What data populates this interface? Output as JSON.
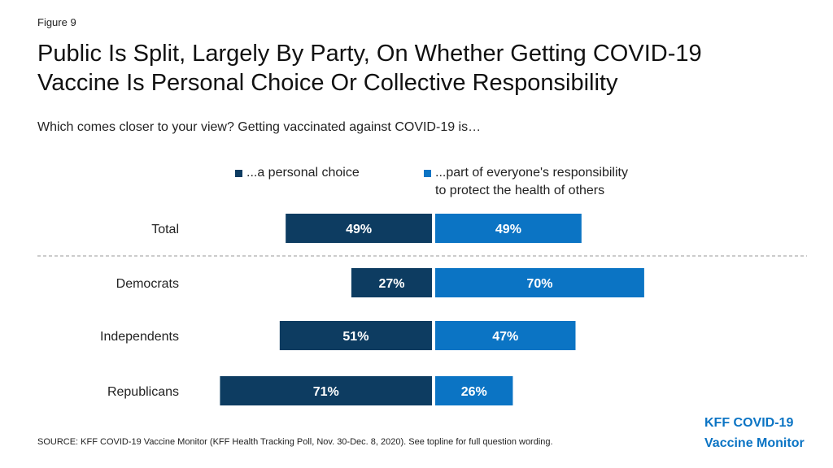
{
  "figure_label": "Figure 9",
  "title_line1": "Public Is Split, Largely By Party, On Whether Getting COVID-19",
  "title_line2": "Vaccine Is Personal Choice Or Collective Responsibility",
  "subtitle": "Which comes closer to your view? Getting vaccinated against COVID-19 is…",
  "colors": {
    "personal_choice": "#0d3c61",
    "responsibility": "#0b74c4",
    "brand": "#0b74c4"
  },
  "chart_data": {
    "type": "bar",
    "orientation": "horizontal",
    "stacking": "diverging",
    "categories": [
      "Total",
      "Democrats",
      "Independents",
      "Republicans"
    ],
    "series": [
      {
        "name": "...a personal choice",
        "values": [
          49,
          27,
          51,
          71
        ],
        "labels": [
          "49%",
          "27%",
          "51%",
          "71%"
        ]
      },
      {
        "name": "...part of everyone's responsibility to protect the health of others",
        "values": [
          49,
          70,
          47,
          26
        ],
        "labels": [
          "49%",
          "70%",
          "47%",
          "26%"
        ]
      }
    ],
    "legend": {
      "position": "top",
      "entries": [
        {
          "line1": "...a personal choice"
        },
        {
          "line1": "...part of everyone's responsibility",
          "line2": "to protect the health of others"
        }
      ]
    },
    "separator_after_category": "Total",
    "grid": false
  },
  "source": "SOURCE: KFF COVID-19 Vaccine Monitor (KFF Health Tracking Poll, Nov. 30-Dec. 8, 2020). See topline for full question wording.",
  "brand": {
    "line1": "KFF COVID-19",
    "line2": "Vaccine Monitor"
  }
}
